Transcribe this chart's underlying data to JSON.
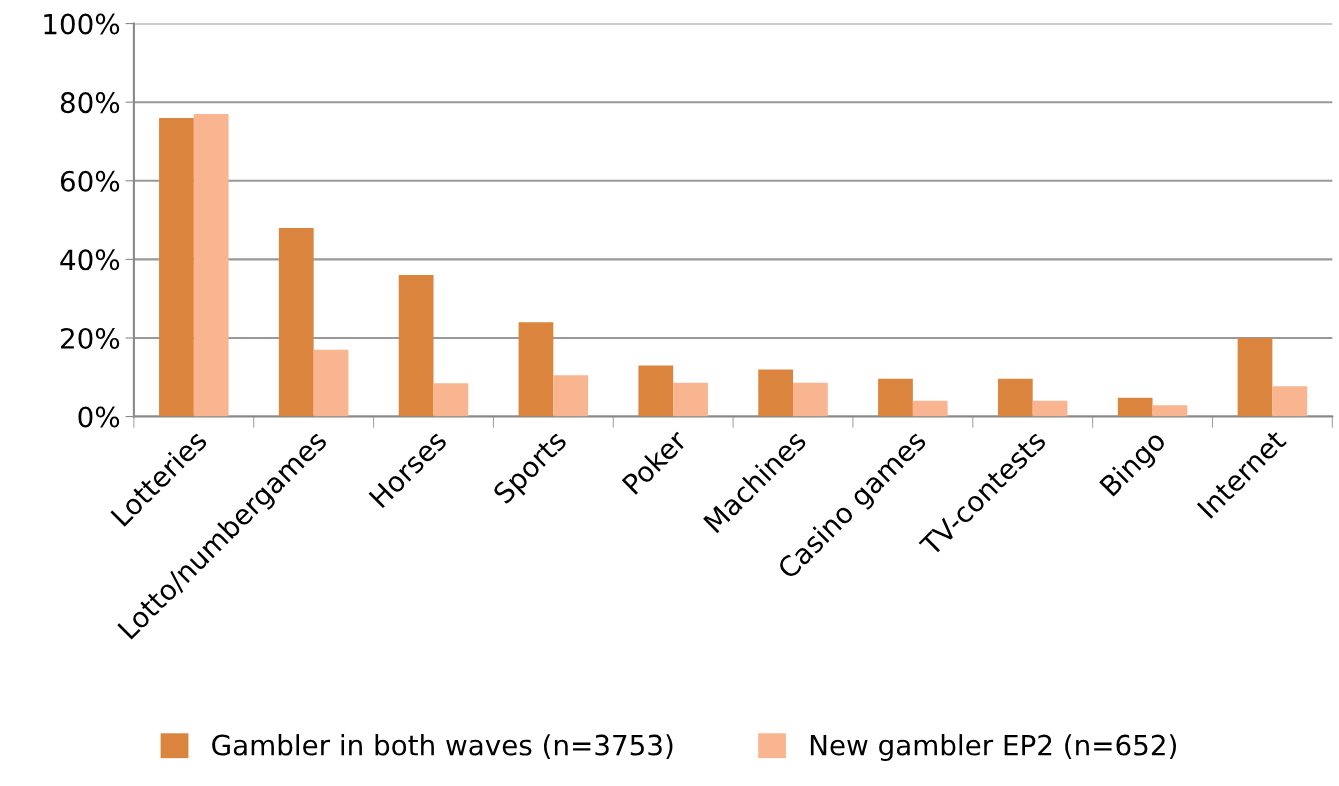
{
  "chart_data": {
    "type": "bar",
    "categories": [
      "Lotteries",
      "Lotto/numbergames",
      "Horses",
      "Sports",
      "Poker",
      "Machines",
      "Casino games",
      "TV-contests",
      "Bingo",
      "Internet"
    ],
    "series": [
      {
        "name": "Gambler in both waves (n=3753)",
        "color": "#db843d",
        "values": [
          76,
          48,
          36,
          24,
          13,
          12,
          9.6,
          9.6,
          4.8,
          20
        ]
      },
      {
        "name": "New gambler EP2 (n=652)",
        "color": "#f8b58f",
        "values": [
          77,
          17,
          8.5,
          10.5,
          8.6,
          8.6,
          4,
          4,
          2.9,
          7.7
        ]
      }
    ],
    "ylim": [
      0,
      100
    ],
    "yticks": [
      {
        "value": 0,
        "label": "0%"
      },
      {
        "value": 20,
        "label": "20%"
      },
      {
        "value": 40,
        "label": "40%"
      },
      {
        "value": 60,
        "label": "60%"
      },
      {
        "value": 80,
        "label": "80%"
      },
      {
        "value": 100,
        "label": "100%"
      }
    ],
    "grid": "y",
    "legend": "bottom"
  }
}
